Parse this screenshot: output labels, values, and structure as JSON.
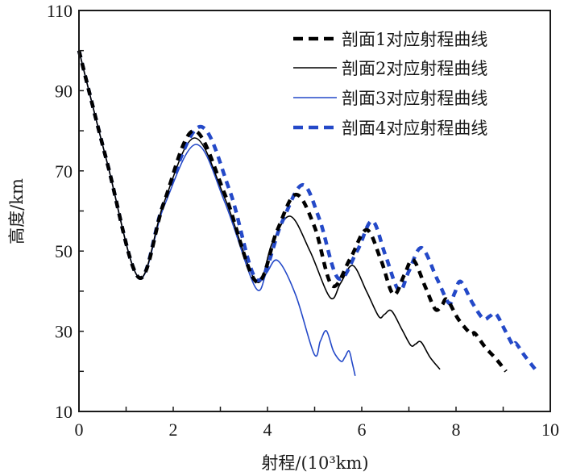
{
  "chart_data": {
    "type": "line",
    "title": "",
    "xlabel": "射程/(10³km)",
    "ylabel": "高度/km",
    "xlim": [
      0,
      10
    ],
    "ylim": [
      10,
      110
    ],
    "x_ticks": [
      0,
      2,
      4,
      6,
      8,
      10
    ],
    "x_tick_labels": [
      "0",
      "2",
      "4",
      "6",
      "8",
      "10"
    ],
    "x_minor_ticks": [
      1,
      3,
      5,
      7,
      9
    ],
    "y_ticks": [
      10,
      30,
      50,
      70,
      90,
      110
    ],
    "y_tick_labels": [
      "10",
      "30",
      "50",
      "70",
      "90",
      "110"
    ],
    "y_minor_ticks": [
      20,
      40,
      60,
      80,
      100
    ],
    "grid": false,
    "legend_position": "top-right",
    "series": [
      {
        "name": "剖面1对应射程曲线",
        "color": "#000000",
        "style": "dashed-thick",
        "x": [
          0,
          0.6,
          1.27,
          1.8,
          2.43,
          3.1,
          3.76,
          4.2,
          4.6,
          5.0,
          5.37,
          5.75,
          6.1,
          6.4,
          6.67,
          6.9,
          7.09,
          7.35,
          7.56,
          7.7,
          7.81,
          8.05,
          8.32,
          8.4,
          8.62,
          8.85,
          9.06
        ],
        "y": [
          100,
          72,
          43.4,
          62,
          80,
          64,
          42.4,
          55,
          64.1,
          56,
          41.4,
          48,
          55.3,
          48,
          39.2,
          44,
          47.8,
          41,
          35.5,
          36.5,
          37.9,
          33,
          29.3,
          29.5,
          26,
          23.1,
          20
        ]
      },
      {
        "name": "剖面2对应射程曲线",
        "color": "#000000",
        "style": "solid-thin",
        "x": [
          0,
          0.6,
          1.27,
          1.8,
          2.45,
          3.1,
          3.76,
          4.1,
          4.48,
          4.9,
          5.33,
          5.55,
          5.81,
          6.1,
          6.36,
          6.48,
          6.63,
          6.85,
          7.04,
          7.14,
          7.26,
          7.45,
          7.66
        ],
        "y": [
          100,
          72,
          43.4,
          62,
          78.2,
          63,
          42.4,
          52,
          58.7,
          50,
          38.4,
          42,
          46.4,
          40,
          33.7,
          34.2,
          35.1,
          30.5,
          26.5,
          26.8,
          27.3,
          23.5,
          20.5
        ]
      },
      {
        "name": "剖面3对应射程曲线",
        "color": "#2449c8",
        "style": "solid-thin",
        "x": [
          0,
          0.6,
          1.27,
          1.8,
          2.48,
          3.1,
          3.74,
          3.98,
          4.22,
          4.6,
          4.99,
          5.12,
          5.25,
          5.4,
          5.56,
          5.64,
          5.73,
          5.8,
          5.86
        ],
        "y": [
          100,
          72,
          43.4,
          61,
          76.6,
          62,
          41,
          44.5,
          47.6,
          39,
          24.3,
          27.5,
          30.1,
          25,
          22.5,
          23.5,
          25.1,
          22,
          18.9
        ]
      },
      {
        "name": "剖面4对应射程曲线",
        "color": "#2449c8",
        "style": "dashed-thick",
        "x": [
          0,
          0.6,
          1.27,
          1.8,
          2.56,
          3.2,
          3.78,
          4.3,
          4.74,
          5.1,
          5.5,
          5.9,
          6.22,
          6.5,
          6.79,
          7.0,
          7.27,
          7.6,
          7.85,
          7.97,
          8.1,
          8.35,
          8.58,
          8.72,
          8.85,
          9.05,
          9.21,
          9.27,
          9.45,
          9.68
        ],
        "y": [
          100,
          72,
          43.4,
          62,
          81,
          65,
          42.8,
          57,
          66.5,
          58,
          43.2,
          50,
          57.5,
          49,
          40.2,
          45,
          50.8,
          43,
          37,
          39.5,
          42.4,
          37,
          33.1,
          33.8,
          34.3,
          30,
          26.5,
          27,
          24,
          20.5
        ]
      }
    ]
  }
}
